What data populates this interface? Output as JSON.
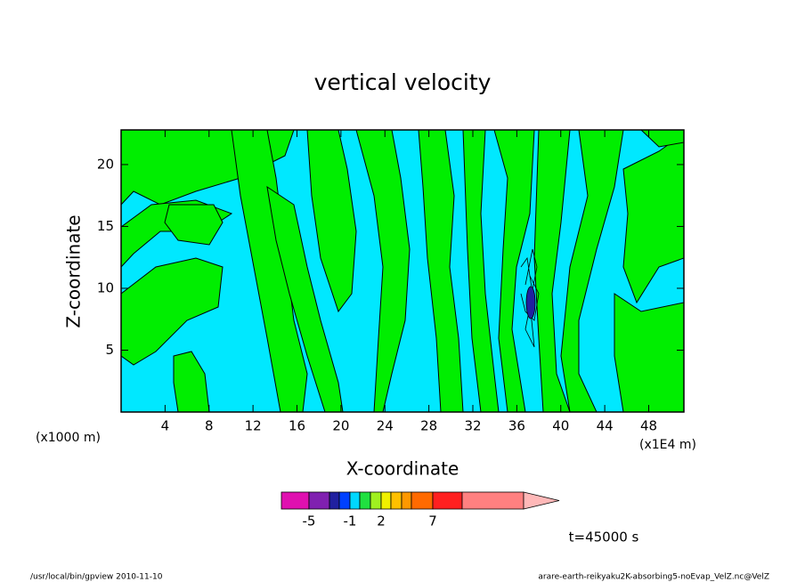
{
  "chart_data": {
    "type": "contour",
    "title": "vertical velocity",
    "x_label": "X-coordinate",
    "y_label": "Z-coordinate",
    "x_unit": "(x1E4 m)",
    "y_unit": "(x1000 m)",
    "xlim": [
      0,
      51.2
    ],
    "xticks": [
      4,
      8,
      12,
      16,
      20,
      24,
      28,
      32,
      36,
      40,
      44,
      48
    ],
    "ylim": [
      0,
      22.8
    ],
    "yticks": [
      5,
      10,
      15,
      20
    ],
    "colorbar": {
      "colors": [
        "#e010b0",
        "#8020b0",
        "#2020a0",
        "#0040ff",
        "#00d8ff",
        "#20e040",
        "#a0f020",
        "#f0f000",
        "#ffc000",
        "#ff9800",
        "#ff6a00",
        "#ff2020",
        "#ff8080",
        "#ffb8b8"
      ],
      "ticks": [
        -5,
        -1,
        2,
        7
      ]
    },
    "time_label": "t=45000 s",
    "footer_left": "/usr/local/bin/gpview  2010-11-10",
    "footer_right": "arare-earth-reikyaku2K-absorbing5-noEvap_VelZ.nc@VelZ"
  }
}
